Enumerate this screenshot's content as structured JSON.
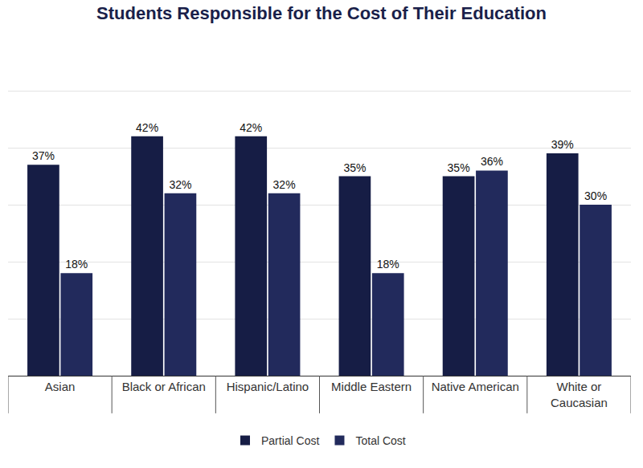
{
  "chart_data": {
    "type": "bar",
    "title": "Students Responsible for the Cost of Their Education",
    "categories": [
      "Asian",
      "Black or African",
      "Hispanic/Latino",
      "Middle Eastern",
      "Native American",
      "White or Caucasian"
    ],
    "series": [
      {
        "name": "Partial Cost",
        "color": "#161d45",
        "values": [
          37,
          42,
          42,
          35,
          35,
          39
        ],
        "value_labels": [
          "37%",
          "42%",
          "42%",
          "35%",
          "35%",
          "39%"
        ]
      },
      {
        "name": "Total Cost",
        "color": "#222a5c",
        "values": [
          18,
          32,
          32,
          18,
          36,
          30
        ],
        "value_labels": [
          "18%",
          "32%",
          "32%",
          "18%",
          "36%",
          "30%"
        ]
      }
    ],
    "ylim": [
      0,
      60
    ],
    "yticks": [
      0,
      10,
      20,
      30,
      40,
      50,
      60
    ],
    "grid": true,
    "legend": "bottom",
    "data_labels": true,
    "tick_labels": "x"
  }
}
